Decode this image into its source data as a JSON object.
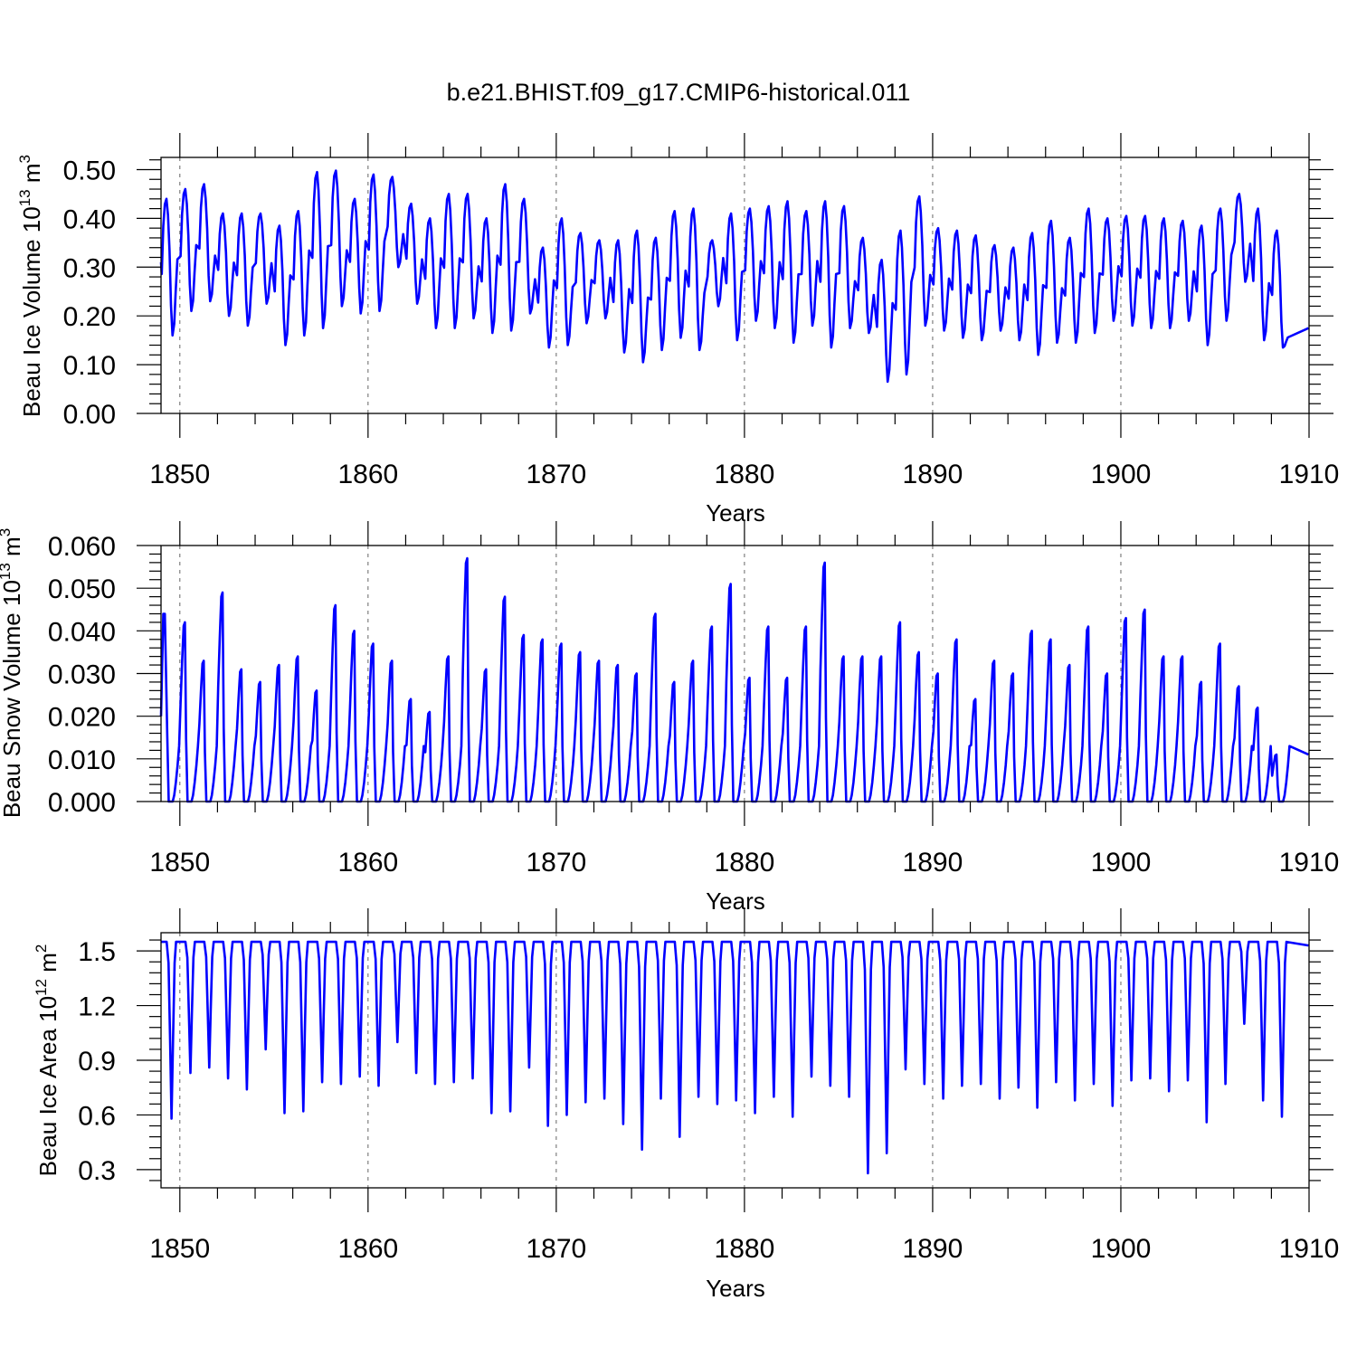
{
  "title": "b.e21.BHIST.f09_g17.CMIP6-historical.011",
  "colors": {
    "series": "#0000ff",
    "grid": "#666666",
    "axis": "#000000"
  },
  "chart_data": [
    {
      "id": "ice_volume",
      "type": "line",
      "xlabel": "Years",
      "ylabel": {
        "main": "Beau Ice Volume 10",
        "sup1": "13",
        "mid": " m",
        "sup2": "3"
      },
      "xlim": [
        1849,
        1910
      ],
      "ylim": [
        0,
        0.525
      ],
      "xticks": [
        1850,
        1860,
        1870,
        1880,
        1890,
        1900,
        1910
      ],
      "xtick_labels": [
        "1850",
        "1860",
        "1870",
        "1880",
        "1890",
        "1900",
        "1910"
      ],
      "yticks": [
        0,
        0.1,
        0.2,
        0.3,
        0.4,
        0.5
      ],
      "ytick_labels": [
        "0.00",
        "0.10",
        "0.20",
        "0.30",
        "0.40",
        "0.50"
      ],
      "grid_x": [
        1850,
        1860,
        1870,
        1880,
        1890,
        1900
      ],
      "series": [
        {
          "name": "Beau Ice Volume",
          "annual_max": [
            0.44,
            0.46,
            0.47,
            0.41,
            0.41,
            0.41,
            0.385,
            0.415,
            0.495,
            0.498,
            0.44,
            0.49,
            0.485,
            0.43,
            0.4,
            0.45,
            0.45,
            0.4,
            0.47,
            0.44,
            0.34,
            0.4,
            0.37,
            0.355,
            0.355,
            0.375,
            0.36,
            0.415,
            0.42,
            0.355,
            0.41,
            0.42,
            0.425,
            0.435,
            0.415,
            0.435,
            0.425,
            0.36,
            0.315,
            0.375,
            0.445,
            0.38,
            0.375,
            0.365,
            0.345,
            0.34,
            0.37,
            0.395,
            0.36,
            0.42,
            0.4,
            0.405,
            0.405,
            0.4,
            0.395,
            0.385,
            0.42,
            0.45,
            0.42,
            0.375
          ],
          "annual_min": [
            0.16,
            0.21,
            0.23,
            0.2,
            0.18,
            0.225,
            0.14,
            0.16,
            0.175,
            0.22,
            0.205,
            0.21,
            0.3,
            0.225,
            0.175,
            0.175,
            0.195,
            0.165,
            0.17,
            0.205,
            0.135,
            0.14,
            0.185,
            0.195,
            0.125,
            0.105,
            0.13,
            0.155,
            0.13,
            0.22,
            0.15,
            0.19,
            0.175,
            0.145,
            0.18,
            0.135,
            0.175,
            0.165,
            0.065,
            0.08,
            0.18,
            0.17,
            0.155,
            0.15,
            0.17,
            0.15,
            0.12,
            0.145,
            0.145,
            0.165,
            0.19,
            0.18,
            0.175,
            0.175,
            0.19,
            0.14,
            0.19,
            0.27,
            0.15,
            0.135
          ],
          "start_value": 0.31,
          "end_value": 0.175
        }
      ]
    },
    {
      "id": "snow_volume",
      "type": "line",
      "xlabel": "Years",
      "ylabel": {
        "main": "Beau Snow Volume 10",
        "sup1": "13",
        "mid": " m",
        "sup2": "3"
      },
      "xlim": [
        1849,
        1910
      ],
      "ylim": [
        0,
        0.06
      ],
      "xticks": [
        1850,
        1860,
        1870,
        1880,
        1890,
        1900,
        1910
      ],
      "xtick_labels": [
        "1850",
        "1860",
        "1870",
        "1880",
        "1890",
        "1900",
        "1910"
      ],
      "yticks": [
        0,
        0.01,
        0.02,
        0.03,
        0.04,
        0.05,
        0.06
      ],
      "ytick_labels": [
        "0.000",
        "0.010",
        "0.020",
        "0.030",
        "0.040",
        "0.050",
        "0.060"
      ],
      "grid_x": [
        1850,
        1860,
        1870,
        1880,
        1890,
        1900
      ],
      "series": [
        {
          "name": "Beau Snow Volume",
          "annual_max": [
            0.044,
            0.042,
            0.033,
            0.049,
            0.031,
            0.028,
            0.032,
            0.034,
            0.026,
            0.046,
            0.04,
            0.037,
            0.033,
            0.024,
            0.021,
            0.034,
            0.057,
            0.031,
            0.048,
            0.039,
            0.038,
            0.037,
            0.035,
            0.033,
            0.032,
            0.03,
            0.044,
            0.028,
            0.033,
            0.041,
            0.051,
            0.029,
            0.041,
            0.029,
            0.041,
            0.056,
            0.034,
            0.034,
            0.034,
            0.042,
            0.035,
            0.03,
            0.038,
            0.024,
            0.033,
            0.03,
            0.04,
            0.038,
            0.032,
            0.041,
            0.03,
            0.043,
            0.045,
            0.034,
            0.034,
            0.028,
            0.037,
            0.027,
            0.022,
            0.011
          ],
          "start_value": 0.02,
          "end_value": 0.011
        }
      ]
    },
    {
      "id": "ice_area",
      "type": "line",
      "xlabel": "Years",
      "ylabel": {
        "main": "Beau Ice Area 10",
        "sup1": "12",
        "mid": " m",
        "sup2": "2"
      },
      "xlim": [
        1849,
        1910
      ],
      "ylim": [
        0.2,
        1.6
      ],
      "xticks": [
        1850,
        1860,
        1870,
        1880,
        1890,
        1900,
        1910
      ],
      "xtick_labels": [
        "1850",
        "1860",
        "1870",
        "1880",
        "1890",
        "1900",
        "1910"
      ],
      "yticks": [
        0.3,
        0.6,
        0.9,
        1.2,
        1.5
      ],
      "ytick_labels": [
        "0.3",
        "0.6",
        "0.9",
        "1.2",
        "1.5"
      ],
      "grid_x": [
        1850,
        1860,
        1870,
        1880,
        1890,
        1900
      ],
      "series": [
        {
          "name": "Beau Ice Area",
          "max_value": 1.55,
          "annual_min": [
            0.58,
            0.83,
            0.86,
            0.8,
            0.74,
            0.96,
            0.61,
            0.62,
            0.78,
            0.77,
            0.81,
            0.76,
            1.0,
            0.83,
            0.77,
            0.78,
            0.8,
            0.61,
            0.62,
            0.86,
            0.54,
            0.6,
            0.67,
            0.69,
            0.55,
            0.41,
            0.69,
            0.48,
            0.7,
            0.66,
            0.68,
            0.61,
            0.7,
            0.59,
            0.81,
            0.76,
            0.7,
            0.28,
            0.39,
            0.85,
            0.77,
            0.69,
            0.76,
            0.77,
            0.69,
            0.75,
            0.64,
            0.78,
            0.68,
            0.77,
            0.65,
            0.79,
            0.8,
            0.73,
            0.79,
            0.56,
            0.77,
            1.1,
            0.68,
            0.59
          ],
          "start_value": 1.55,
          "end_value": 1.53
        }
      ]
    }
  ]
}
